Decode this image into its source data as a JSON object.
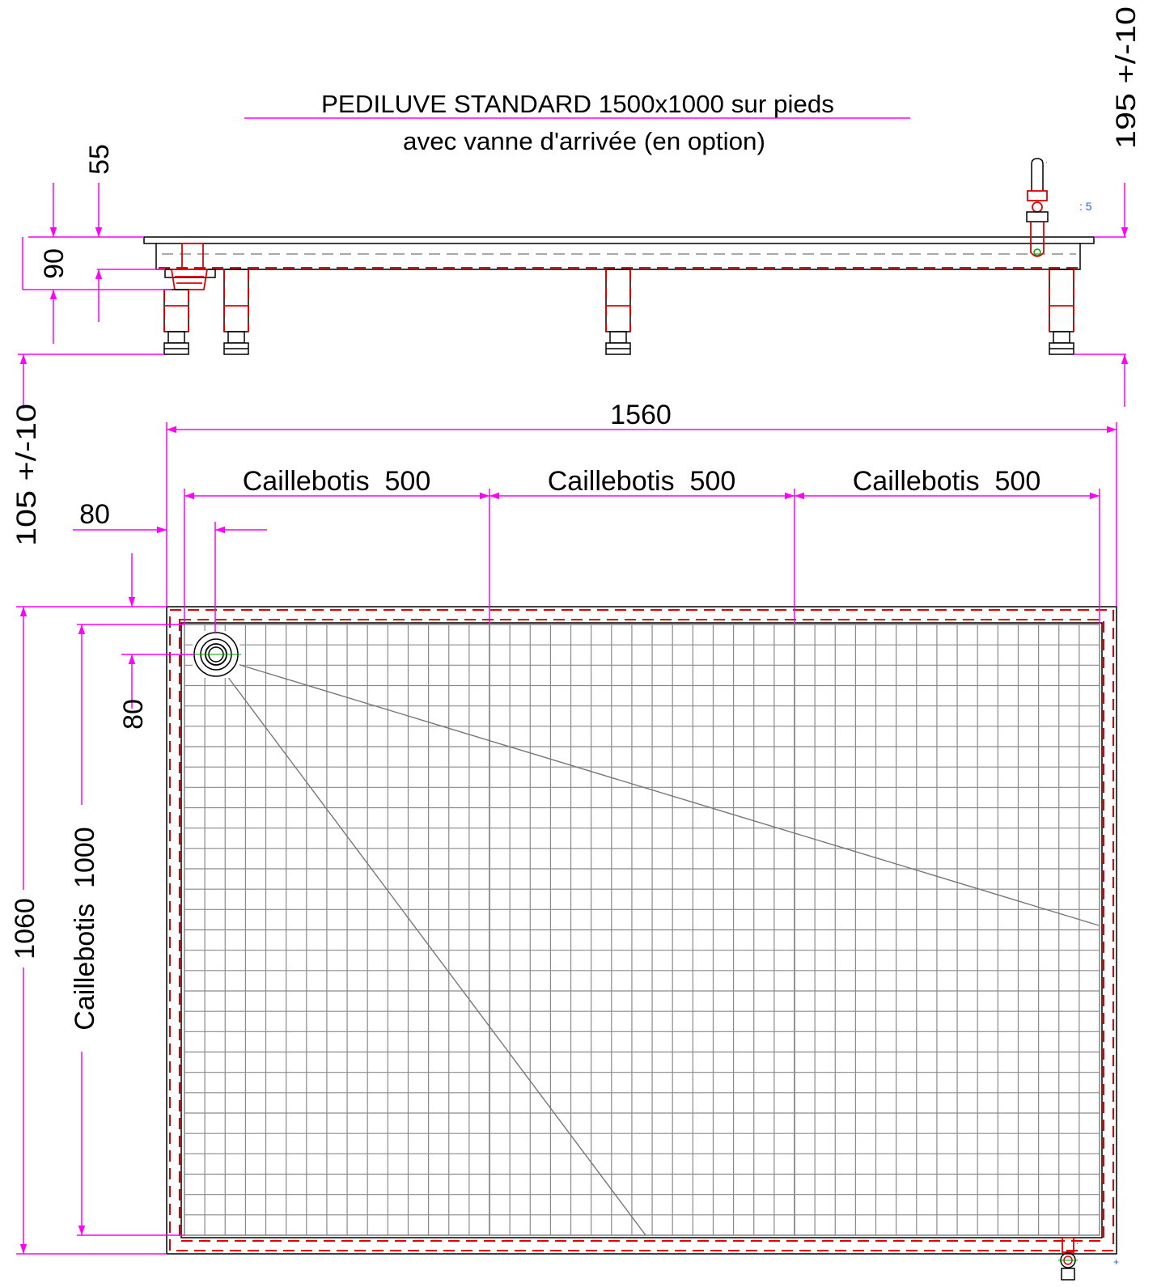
{
  "title": {
    "line1": "PEDILUVE STANDARD 1500x1000 sur pieds",
    "line2": "avec vanne d'arrivée (en option)"
  },
  "colors": {
    "dimension": "#ff00ff",
    "outline": "#000000",
    "hidden_red": "#e00000",
    "grating": "#8a8a8a",
    "axis": "#00a000"
  },
  "side_view": {
    "dim_right_top": "195  +/-10",
    "dim_left_55": "55",
    "dim_left_90": "90",
    "dim_left_bottom": "105  +/-10"
  },
  "top_view": {
    "dim_overall_width": "1560",
    "grating_1": "Caillebotis  500",
    "grating_2": "Caillebotis  500",
    "grating_3": "Caillebotis  500",
    "dim_offset_x": "80",
    "dim_offset_y": "80",
    "dim_overall_depth": "1060",
    "grating_depth": "Caillebotis  1000"
  }
}
